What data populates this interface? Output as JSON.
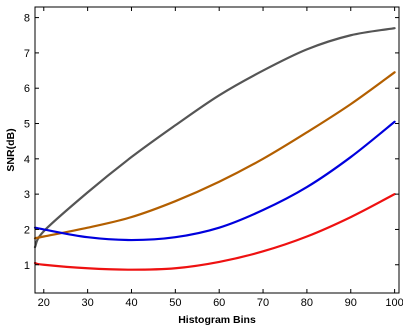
{
  "chart_data": {
    "type": "line",
    "title": "",
    "xlabel": "Histogram Bins",
    "ylabel": "SNR(dB)",
    "xlim": [
      18,
      101
    ],
    "ylim": [
      0.2,
      8.3
    ],
    "xticks": [
      20,
      30,
      40,
      50,
      60,
      70,
      80,
      90,
      100
    ],
    "yticks": [
      1,
      2,
      3,
      4,
      5,
      6,
      7,
      8
    ],
    "grid": false,
    "legend": "none",
    "x": [
      18,
      20,
      30,
      40,
      50,
      60,
      70,
      80,
      90,
      100
    ],
    "series": [
      {
        "color": "#555555",
        "values": [
          1.5,
          1.95,
          3.05,
          4.05,
          4.95,
          5.8,
          6.5,
          7.1,
          7.5,
          7.7
        ]
      },
      {
        "color": "#b35f00",
        "values": [
          1.75,
          1.8,
          2.05,
          2.35,
          2.8,
          3.35,
          4.0,
          4.75,
          5.55,
          6.45
        ]
      },
      {
        "color": "#0000dd",
        "values": [
          2.05,
          2.0,
          1.78,
          1.7,
          1.78,
          2.05,
          2.55,
          3.2,
          4.05,
          5.05
        ]
      },
      {
        "color": "#ee1111",
        "values": [
          1.05,
          1.0,
          0.9,
          0.86,
          0.9,
          1.08,
          1.38,
          1.8,
          2.35,
          3.0
        ]
      }
    ]
  }
}
